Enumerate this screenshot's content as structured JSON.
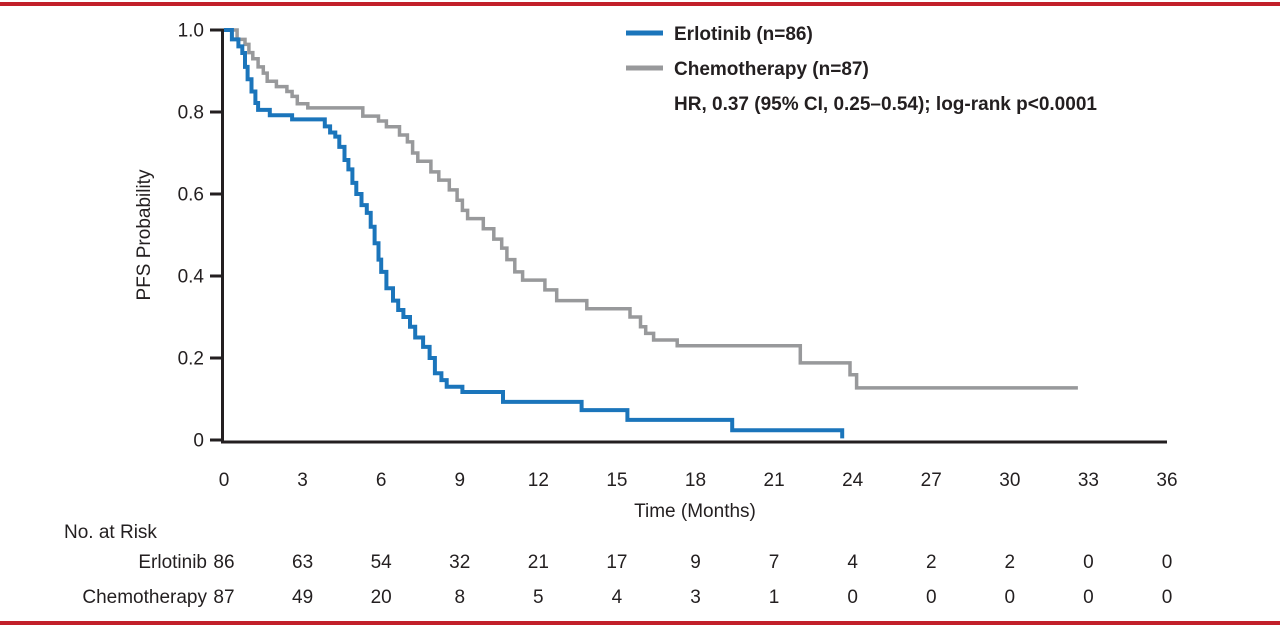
{
  "figure": {
    "accent_rule_color": "#c2202a",
    "background": "#ffffff",
    "axis_color": "#231f20"
  },
  "chart_data": {
    "type": "line",
    "subtype": "kaplan-meier-step",
    "xlabel": "Time (Months)",
    "ylabel": "PFS Probability",
    "xlim": [
      0,
      36
    ],
    "ylim": [
      0,
      1.0
    ],
    "xticks": [
      0,
      3,
      6,
      9,
      12,
      15,
      18,
      21,
      24,
      27,
      30,
      33,
      36
    ],
    "yticks": [
      0,
      0.2,
      0.4,
      0.6,
      0.8,
      1.0
    ],
    "ytick_labels": [
      "0",
      "0.2",
      "0.4",
      "0.6",
      "0.8",
      "1.0"
    ],
    "grid": false,
    "legend_position": "top-right",
    "annotation": "HR, 0.37 (95% CI, 0.25–0.54); log-rank p<0.0001",
    "series": [
      {
        "name": "Chemotherapy (n=87)",
        "color": "#98999b",
        "line_width": 3.5,
        "steps": [
          [
            0,
            1.0
          ],
          [
            0.5,
            0.977
          ],
          [
            0.8,
            0.965
          ],
          [
            0.95,
            0.945
          ],
          [
            1.1,
            0.93
          ],
          [
            1.3,
            0.91
          ],
          [
            1.5,
            0.895
          ],
          [
            1.65,
            0.875
          ],
          [
            2.0,
            0.862
          ],
          [
            2.4,
            0.85
          ],
          [
            2.6,
            0.838
          ],
          [
            2.8,
            0.82
          ],
          [
            3.2,
            0.81
          ],
          [
            5.3,
            0.79
          ],
          [
            5.9,
            0.778
          ],
          [
            6.2,
            0.764
          ],
          [
            6.7,
            0.744
          ],
          [
            7.0,
            0.727
          ],
          [
            7.2,
            0.7
          ],
          [
            7.4,
            0.68
          ],
          [
            7.9,
            0.654
          ],
          [
            8.2,
            0.634
          ],
          [
            8.6,
            0.61
          ],
          [
            8.9,
            0.585
          ],
          [
            9.1,
            0.56
          ],
          [
            9.3,
            0.54
          ],
          [
            9.9,
            0.515
          ],
          [
            10.3,
            0.49
          ],
          [
            10.6,
            0.468
          ],
          [
            10.8,
            0.44
          ],
          [
            11.1,
            0.41
          ],
          [
            11.4,
            0.39
          ],
          [
            12.25,
            0.366
          ],
          [
            12.7,
            0.34
          ],
          [
            13.85,
            0.32
          ],
          [
            15.5,
            0.3
          ],
          [
            15.9,
            0.276
          ],
          [
            16.1,
            0.26
          ],
          [
            16.4,
            0.244
          ],
          [
            17.3,
            0.23
          ],
          [
            22.0,
            0.188
          ],
          [
            23.9,
            0.159
          ],
          [
            24.15,
            0.127
          ],
          [
            32.6,
            0.127
          ]
        ]
      },
      {
        "name": "Erlotinib (n=86)",
        "color": "#1b75bb",
        "line_width": 4,
        "steps": [
          [
            0,
            1.0
          ],
          [
            0.3,
            0.977
          ],
          [
            0.55,
            0.96
          ],
          [
            0.7,
            0.944
          ],
          [
            0.8,
            0.91
          ],
          [
            0.9,
            0.88
          ],
          [
            1.05,
            0.85
          ],
          [
            1.2,
            0.822
          ],
          [
            1.3,
            0.805
          ],
          [
            1.75,
            0.792
          ],
          [
            2.6,
            0.782
          ],
          [
            3.85,
            0.765
          ],
          [
            4.05,
            0.75
          ],
          [
            4.25,
            0.74
          ],
          [
            4.4,
            0.715
          ],
          [
            4.6,
            0.683
          ],
          [
            4.75,
            0.66
          ],
          [
            4.9,
            0.627
          ],
          [
            5.05,
            0.6
          ],
          [
            5.25,
            0.573
          ],
          [
            5.45,
            0.554
          ],
          [
            5.6,
            0.52
          ],
          [
            5.75,
            0.48
          ],
          [
            5.9,
            0.44
          ],
          [
            6.0,
            0.41
          ],
          [
            6.2,
            0.37
          ],
          [
            6.45,
            0.34
          ],
          [
            6.65,
            0.317
          ],
          [
            6.85,
            0.3
          ],
          [
            7.1,
            0.276
          ],
          [
            7.3,
            0.25
          ],
          [
            7.6,
            0.227
          ],
          [
            7.85,
            0.2
          ],
          [
            8.05,
            0.163
          ],
          [
            8.3,
            0.146
          ],
          [
            8.5,
            0.13
          ],
          [
            9.1,
            0.117
          ],
          [
            10.65,
            0.093
          ],
          [
            13.65,
            0.073
          ],
          [
            15.4,
            0.049
          ],
          [
            19.4,
            0.024
          ],
          [
            23.6,
            0.004
          ]
        ]
      }
    ],
    "risk_table": {
      "label": "No. at Risk",
      "times": [
        0,
        3,
        6,
        9,
        12,
        15,
        18,
        21,
        24,
        27,
        30,
        33,
        36
      ],
      "rows": [
        {
          "name": "Erlotinib",
          "values": [
            86,
            63,
            54,
            32,
            21,
            17,
            9,
            7,
            4,
            2,
            2,
            0,
            0
          ]
        },
        {
          "name": "Chemotherapy",
          "values": [
            87,
            49,
            20,
            8,
            5,
            4,
            3,
            1,
            0,
            0,
            0,
            0,
            0
          ]
        }
      ]
    }
  },
  "legend": {
    "erlotinib_label": "Erlotinib (n=86)",
    "chemotherapy_label": "Chemotherapy (n=87)",
    "hr_annotation": "HR, 0.37 (95% CI, 0.25–0.54); log-rank p<0.0001"
  },
  "labels": {
    "y_axis": "PFS Probability",
    "x_axis": "Time (Months)",
    "no_at_risk": "No. at Risk",
    "risk_row_1": "Erlotinib",
    "risk_row_2": "Chemotherapy"
  }
}
